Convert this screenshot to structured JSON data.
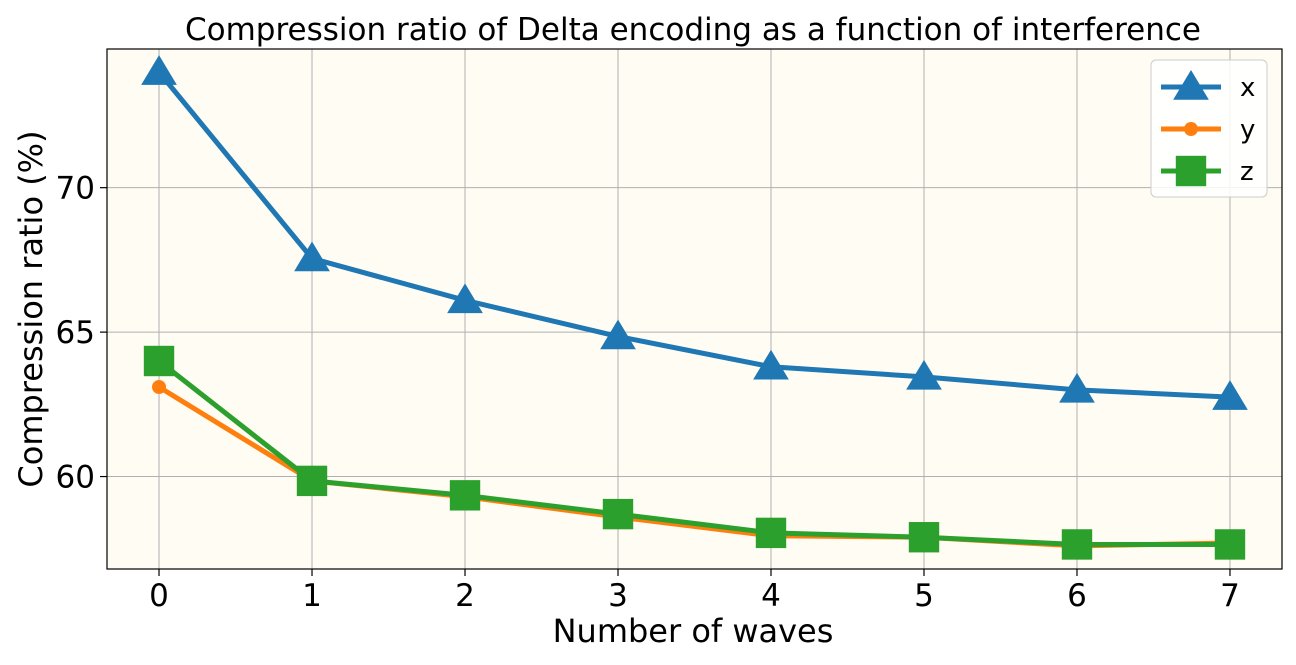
{
  "chart_data": {
    "type": "line",
    "title": "Compression ratio of Delta encoding as a function of interference",
    "xlabel": "Number of waves",
    "ylabel": "Compression ratio (%)",
    "x": [
      0,
      1,
      2,
      3,
      4,
      5,
      6,
      7
    ],
    "xlim": [
      -0.34,
      7.34
    ],
    "ylim": [
      56.8,
      74.8
    ],
    "xticks": [
      0,
      1,
      2,
      3,
      4,
      5,
      6,
      7
    ],
    "yticks": [
      60,
      65,
      70
    ],
    "grid": true,
    "legend_position": "top-right",
    "background_color": "#fffcf3",
    "series": [
      {
        "name": "x",
        "color": "#1f77b4",
        "marker": "triangle",
        "values": [
          74.0,
          67.55,
          66.1,
          64.85,
          63.8,
          63.45,
          63.0,
          62.75
        ]
      },
      {
        "name": "y",
        "color": "#ff7f0e",
        "marker": "circle",
        "values": [
          63.1,
          59.85,
          59.3,
          58.6,
          57.95,
          57.9,
          57.6,
          57.7
        ]
      },
      {
        "name": "z",
        "color": "#2ca02c",
        "marker": "square",
        "values": [
          64.0,
          59.85,
          59.35,
          58.7,
          58.05,
          57.9,
          57.65,
          57.65
        ]
      }
    ]
  }
}
